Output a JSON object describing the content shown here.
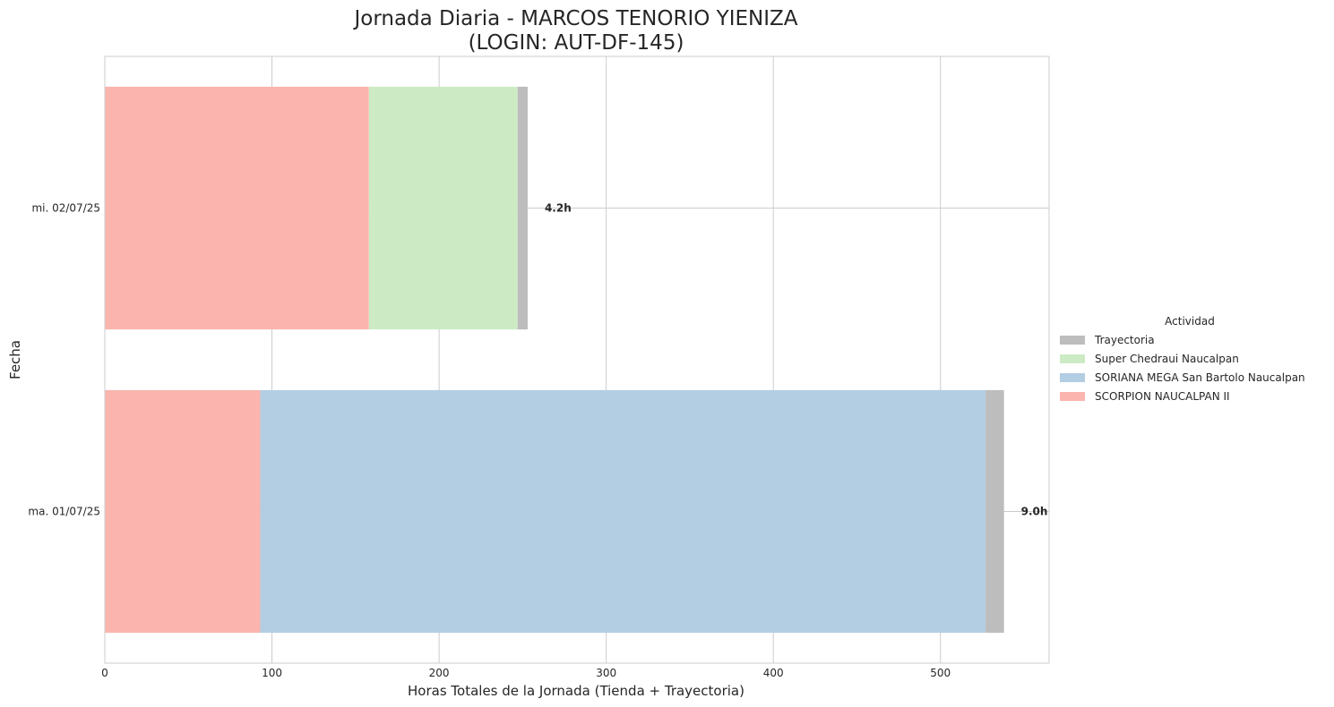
{
  "chart_data": {
    "type": "bar",
    "orientation": "horizontal",
    "stacked": true,
    "title_line1": "Jornada Diaria - MARCOS TENORIO YIENIZA",
    "title_line2": "(LOGIN: AUT-DF-145)",
    "xlabel": "Horas Totales de la Jornada (Tienda + Trayectoria)",
    "ylabel": "Fecha",
    "xlim": [
      0,
      565
    ],
    "xticks": [
      0,
      100,
      200,
      300,
      400,
      500
    ],
    "grid": true,
    "legend": {
      "title": "Actividad",
      "placement": "center-right outside",
      "entries": [
        {
          "name": "Trayectoria",
          "color": "#bdbdbd"
        },
        {
          "name": "Super Chedraui Naucalpan",
          "color": "#ccebc5"
        },
        {
          "name": "SORIANA MEGA San Bartolo Naucalpan",
          "color": "#b3cde3"
        },
        {
          "name": "SCORPION NAUCALPAN II",
          "color": "#fbb4ae"
        }
      ]
    },
    "categories": [
      "mi. 02/07/25",
      "ma. 01/07/25"
    ],
    "series": [
      {
        "name": "SCORPION NAUCALPAN II",
        "color": "#fbb4ae",
        "values": [
          158,
          93
        ]
      },
      {
        "name": "Super Chedraui Naucalpan",
        "color": "#ccebc5",
        "values": [
          89,
          0
        ]
      },
      {
        "name": "SORIANA MEGA San Bartolo Naucalpan",
        "color": "#b3cde3",
        "values": [
          0,
          434
        ]
      },
      {
        "name": "Trayectoria",
        "color": "#bdbdbd",
        "values": [
          6,
          11
        ]
      }
    ],
    "totals_labels": [
      "4.2h",
      "9.0h"
    ]
  }
}
